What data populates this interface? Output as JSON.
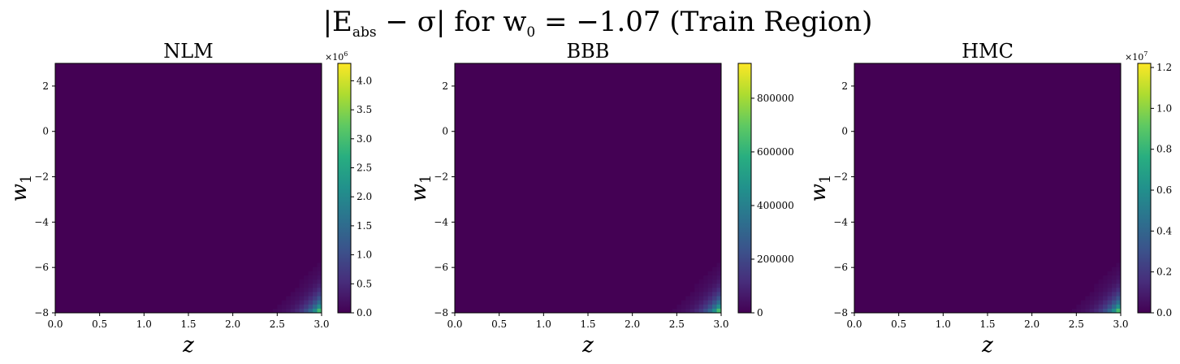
{
  "figure": {
    "title_prefix": "|E",
    "title_sub": "abs",
    "title_mid": " − σ| for w",
    "title_sub0": "0",
    "title_suffix": " = −1.07 (Train Region)"
  },
  "chart_data": [
    {
      "type": "heatmap",
      "title": "NLM",
      "xlabel": "z",
      "ylabel": "w",
      "ylabel_sub": "1",
      "xlim": [
        0.0,
        3.0
      ],
      "ylim": [
        -8,
        3
      ],
      "xticks": [
        "0.0",
        "0.5",
        "1.0",
        "1.5",
        "2.0",
        "2.5",
        "3.0"
      ],
      "yticks": [
        "2",
        "0",
        "−2",
        "−4",
        "−6",
        "−8"
      ],
      "grid": false,
      "colormap": "viridis",
      "vmin": 0,
      "vmax": 4300000,
      "peak": 4200000,
      "peak_location": [
        3.0,
        -8
      ],
      "colorbar_ticks": [
        "0.0",
        "0.5",
        "1.0",
        "1.5",
        "2.0",
        "2.5",
        "3.0",
        "3.5",
        "4.0"
      ],
      "colorbar_tick_values": [
        0,
        500000,
        1000000,
        1500000,
        2000000,
        2500000,
        3000000,
        3500000,
        4000000
      ],
      "colorbar_multiplier_base": "×10",
      "colorbar_multiplier_exp": "6"
    },
    {
      "type": "heatmap",
      "title": "BBB",
      "xlabel": "z",
      "ylabel": "w",
      "ylabel_sub": "1",
      "xlim": [
        0.0,
        3.0
      ],
      "ylim": [
        -8,
        3
      ],
      "xticks": [
        "0.0",
        "0.5",
        "1.0",
        "1.5",
        "2.0",
        "2.5",
        "3.0"
      ],
      "yticks": [
        "2",
        "0",
        "−2",
        "−4",
        "−6",
        "−8"
      ],
      "grid": false,
      "colormap": "viridis",
      "vmin": 0,
      "vmax": 930000,
      "peak": 920000,
      "peak_location": [
        3.0,
        -8
      ],
      "colorbar_ticks": [
        "0",
        "200000",
        "400000",
        "600000",
        "800000"
      ],
      "colorbar_tick_values": [
        0,
        200000,
        400000,
        600000,
        800000
      ],
      "colorbar_multiplier_base": "",
      "colorbar_multiplier_exp": ""
    },
    {
      "type": "heatmap",
      "title": "HMC",
      "xlabel": "z",
      "ylabel": "w",
      "ylabel_sub": "1",
      "xlim": [
        0.0,
        3.0
      ],
      "ylim": [
        -8,
        3
      ],
      "xticks": [
        "0.0",
        "0.5",
        "1.0",
        "1.5",
        "2.0",
        "2.5",
        "3.0"
      ],
      "yticks": [
        "2",
        "0",
        "−2",
        "−4",
        "−6",
        "−8"
      ],
      "grid": false,
      "colormap": "viridis",
      "vmin": 0,
      "vmax": 12200000,
      "peak": 12100000,
      "peak_location": [
        3.0,
        -8
      ],
      "colorbar_ticks": [
        "0.0",
        "0.2",
        "0.4",
        "0.6",
        "0.8",
        "1.0",
        "1.2"
      ],
      "colorbar_tick_values": [
        0,
        2000000,
        4000000,
        6000000,
        8000000,
        10000000,
        12000000
      ],
      "colorbar_multiplier_base": "×10",
      "colorbar_multiplier_exp": "7"
    }
  ]
}
